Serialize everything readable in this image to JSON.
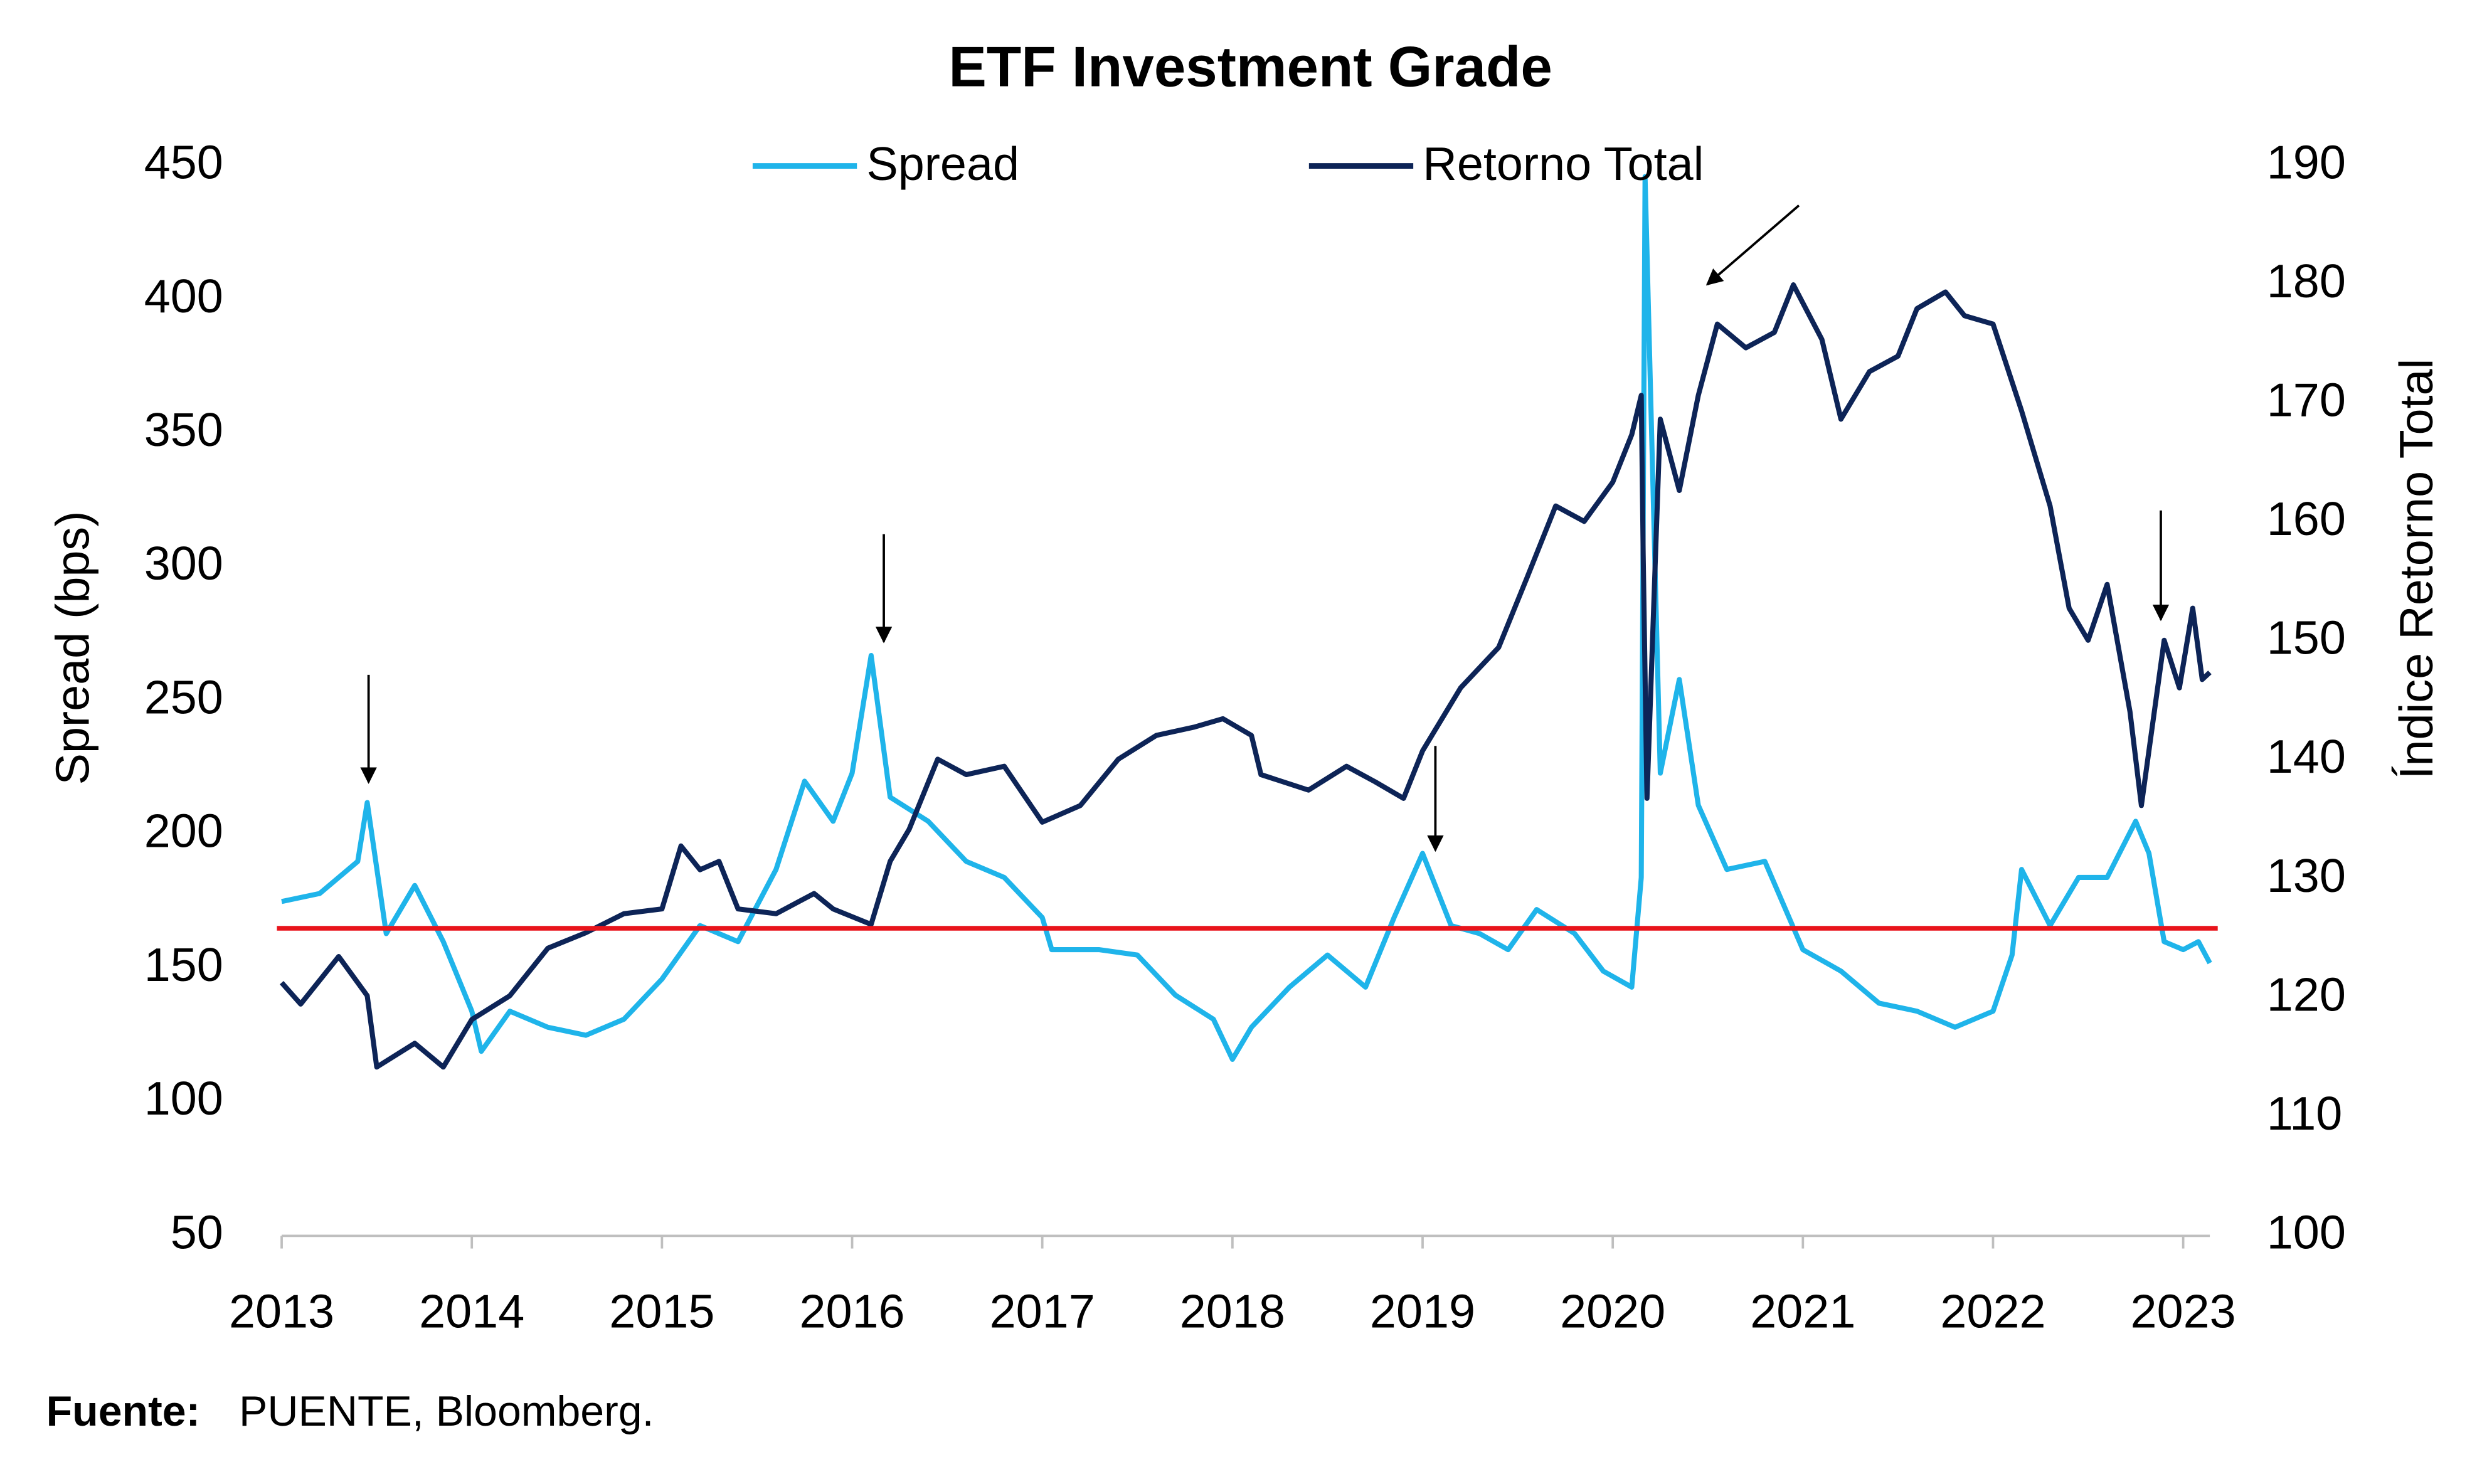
{
  "chart_data": {
    "type": "line",
    "title": "ETF Investment Grade",
    "ylabel": "Spread (bps)",
    "y2label": "Índice Retorno Total",
    "source_label": "Fuente:",
    "source": "PUENTE, Bloomberg.",
    "xlim": [
      2013,
      2023.14
    ],
    "xticks": [
      2013,
      2014,
      2015,
      2016,
      2017,
      2018,
      2019,
      2020,
      2021,
      2022,
      2023
    ],
    "ylim": [
      50,
      450
    ],
    "yticks": [
      50,
      100,
      150,
      200,
      250,
      300,
      350,
      400,
      450
    ],
    "y2lim": [
      100,
      190
    ],
    "y2ticks": [
      100,
      110,
      120,
      130,
      140,
      150,
      160,
      170,
      180,
      190
    ],
    "legend": "top",
    "hline": {
      "value": 165,
      "color": "#e8141b"
    },
    "series": [
      {
        "name": "Spread",
        "color": "#1fb4ea",
        "axis": "y",
        "x": [
          2013.0,
          2013.2,
          2013.4,
          2013.45,
          2013.55,
          2013.7,
          2013.85,
          2014.0,
          2014.05,
          2014.2,
          2014.4,
          2014.6,
          2014.8,
          2015.0,
          2015.2,
          2015.4,
          2015.6,
          2015.75,
          2015.9,
          2016.0,
          2016.1,
          2016.2,
          2016.4,
          2016.6,
          2016.8,
          2017.0,
          2017.05,
          2017.3,
          2017.5,
          2017.7,
          2017.9,
          2018.0,
          2018.1,
          2018.3,
          2018.5,
          2018.7,
          2018.85,
          2019.0,
          2019.15,
          2019.3,
          2019.45,
          2019.6,
          2019.8,
          2019.95,
          2020.1,
          2020.15,
          2020.17,
          2020.25,
          2020.35,
          2020.45,
          2020.6,
          2020.8,
          2021.0,
          2021.2,
          2021.4,
          2021.6,
          2021.8,
          2022.0,
          2022.1,
          2022.15,
          2022.3,
          2022.45,
          2022.6,
          2022.75,
          2022.82,
          2022.9,
          2023.0,
          2023.08,
          2023.14
        ],
        "values": [
          175,
          178,
          190,
          212,
          163,
          181,
          160,
          134,
          119,
          134,
          128,
          125,
          131,
          146,
          166,
          160,
          187,
          220,
          205,
          223,
          267,
          214,
          205,
          190,
          184,
          169,
          157,
          157,
          155,
          140,
          131,
          116,
          128,
          143,
          155,
          143,
          169,
          193,
          166,
          163,
          157,
          172,
          163,
          149,
          143,
          184,
          446,
          223,
          258,
          211,
          187,
          190,
          157,
          149,
          137,
          134,
          128,
          134,
          155,
          187,
          166,
          184,
          184,
          205,
          193,
          160,
          157,
          160,
          152
        ]
      },
      {
        "name": "Retorno Total",
        "color": "#0d2457",
        "axis": "y2",
        "x": [
          2013.0,
          2013.1,
          2013.3,
          2013.45,
          2013.5,
          2013.7,
          2013.85,
          2014.0,
          2014.2,
          2014.4,
          2014.6,
          2014.8,
          2015.0,
          2015.1,
          2015.2,
          2015.3,
          2015.4,
          2015.6,
          2015.8,
          2015.9,
          2016.1,
          2016.2,
          2016.3,
          2016.45,
          2016.6,
          2016.8,
          2017.0,
          2017.2,
          2017.4,
          2017.6,
          2017.8,
          2017.95,
          2018.1,
          2018.15,
          2018.4,
          2018.6,
          2018.75,
          2018.9,
          2019.0,
          2019.2,
          2019.4,
          2019.55,
          2019.7,
          2019.85,
          2020.0,
          2020.1,
          2020.15,
          2020.16,
          2020.18,
          2020.25,
          2020.35,
          2020.45,
          2020.55,
          2020.7,
          2020.85,
          2020.95,
          2021.1,
          2021.2,
          2021.35,
          2021.5,
          2021.6,
          2021.75,
          2021.85,
          2022.0,
          2022.15,
          2022.3,
          2022.4,
          2022.5,
          2022.6,
          2022.72,
          2022.78,
          2022.9,
          2022.98,
          2023.05,
          2023.1,
          2023.14
        ],
        "values": [
          121.3,
          119.5,
          123.5,
          120.2,
          114.2,
          116.2,
          114.2,
          118.2,
          120.2,
          124.2,
          125.5,
          127.1,
          127.5,
          132.8,
          130.8,
          131.5,
          127.5,
          127.1,
          128.8,
          127.5,
          126.2,
          131.5,
          134.2,
          140.1,
          138.8,
          139.5,
          134.8,
          136.2,
          140.1,
          142.1,
          142.8,
          143.5,
          142.1,
          138.8,
          137.5,
          139.5,
          138.2,
          136.8,
          140.8,
          146.1,
          149.5,
          155.4,
          161.4,
          160.1,
          163.4,
          167.4,
          170.7,
          157.4,
          136.8,
          168.7,
          162.7,
          170.7,
          176.7,
          174.7,
          176.0,
          180.0,
          175.4,
          168.7,
          172.7,
          174.0,
          178.0,
          179.4,
          177.4,
          176.7,
          169.4,
          161.4,
          152.8,
          150.1,
          154.8,
          144.1,
          136.2,
          150.1,
          146.1,
          152.8,
          146.8,
          147.4
        ]
      }
    ]
  }
}
